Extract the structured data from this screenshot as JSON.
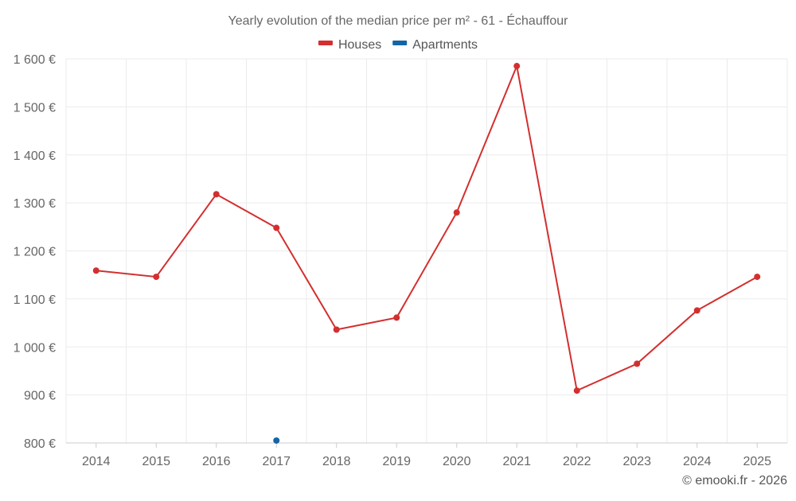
{
  "chart_data": {
    "type": "line",
    "title": "Yearly evolution of the median price per m² - 61 - Échauffour",
    "x": [
      "2014",
      "2015",
      "2016",
      "2017",
      "2018",
      "2019",
      "2020",
      "2021",
      "2022",
      "2023",
      "2024",
      "2025"
    ],
    "series": [
      {
        "name": "Houses",
        "color": "#d32f2f",
        "values": [
          1159,
          1146,
          1318,
          1248,
          1036,
          1061,
          1280,
          1585,
          909,
          965,
          1076,
          1146
        ]
      },
      {
        "name": "Apartments",
        "color": "#1565a6",
        "values": [
          null,
          null,
          null,
          805,
          null,
          null,
          null,
          null,
          null,
          null,
          null,
          null
        ]
      }
    ],
    "ylim": [
      800,
      1600
    ],
    "yticks": [
      800,
      900,
      1000,
      1100,
      1200,
      1300,
      1400,
      1500,
      1600
    ],
    "ytick_labels": [
      "800 €",
      "900 €",
      "1 000 €",
      "1 100 €",
      "1 200 €",
      "1 300 €",
      "1 400 €",
      "1 500 €",
      "1 600 €"
    ],
    "grid": true,
    "legend": "top-center"
  },
  "credit": "© emooki.fr - 2026"
}
